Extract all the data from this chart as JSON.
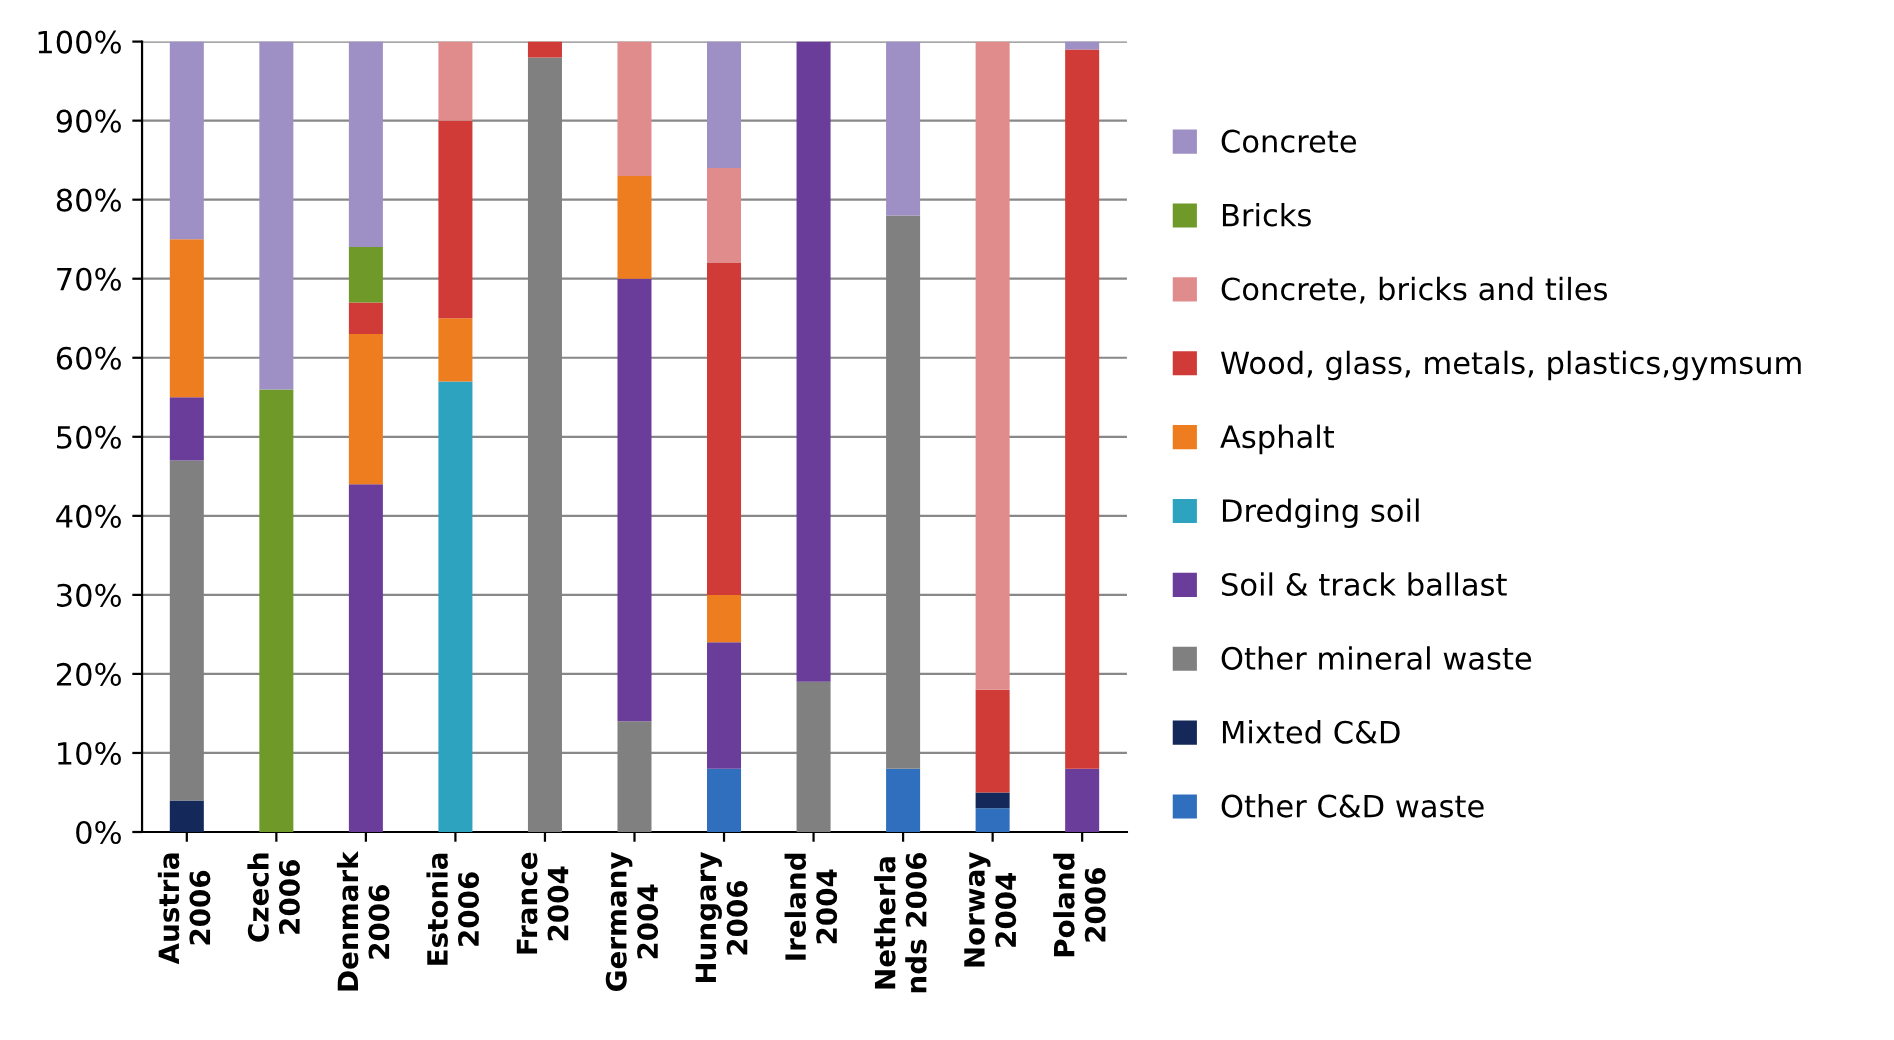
{
  "chart_data": {
    "type": "bar",
    "stacked": true,
    "categories": [
      "Austria\n2006",
      "Czech\n2006",
      "Denmark\n2006",
      "Estonia\n2006",
      "France\n2004",
      "Germany\n2004",
      "Hungary\n2006",
      "Ireland\n2004",
      "Netherla\nnds 2006",
      "Norway\n2004",
      "Poland\n2006"
    ],
    "series": [
      {
        "name": "Other C&D waste",
        "color": "#2f6fbd",
        "values": [
          null,
          null,
          null,
          null,
          null,
          null,
          8,
          null,
          8,
          3,
          null
        ]
      },
      {
        "name": "Mixted C&D",
        "color": "#14285a",
        "values": [
          4,
          null,
          null,
          null,
          null,
          null,
          null,
          null,
          null,
          2,
          null
        ]
      },
      {
        "name": "Other mineral waste",
        "color": "#808080",
        "values": [
          43,
          null,
          null,
          null,
          98,
          14,
          null,
          19,
          70,
          null,
          null
        ]
      },
      {
        "name": "Soil & track ballast",
        "color": "#6a3d9a",
        "values": [
          8,
          null,
          44,
          null,
          null,
          56,
          16,
          81,
          null,
          null,
          8
        ]
      },
      {
        "name": "Dredging soil",
        "color": "#2ea3c0",
        "values": [
          null,
          null,
          null,
          57,
          null,
          null,
          null,
          null,
          null,
          null,
          null
        ]
      },
      {
        "name": "Asphalt",
        "color": "#ed7d1f",
        "values": [
          20,
          null,
          19,
          8,
          null,
          13,
          6,
          null,
          null,
          null,
          null
        ]
      },
      {
        "name": "Wood, glass, metals, plastics,gymsum",
        "color": "#d03a37",
        "values": [
          null,
          null,
          4,
          25,
          2,
          null,
          42,
          null,
          null,
          13,
          91
        ]
      },
      {
        "name": "Concrete, bricks and tiles",
        "color": "#e08c8c",
        "values": [
          null,
          null,
          null,
          10,
          null,
          17,
          12,
          null,
          null,
          82,
          null
        ]
      },
      {
        "name": "Bricks",
        "color": "#6f9a2a",
        "values": [
          null,
          56,
          7,
          null,
          null,
          null,
          null,
          null,
          null,
          null,
          null
        ]
      },
      {
        "name": "Concrete",
        "color": "#9e8fc4",
        "values": [
          25,
          44,
          26,
          null,
          null,
          null,
          16,
          null,
          22,
          null,
          1
        ]
      }
    ],
    "ylim": [
      0,
      100
    ],
    "yticks": [
      {
        "value": 0,
        "label": "0%"
      },
      {
        "value": 10,
        "label": "10%"
      },
      {
        "value": 20,
        "label": "20%"
      },
      {
        "value": 30,
        "label": "30%"
      },
      {
        "value": 40,
        "label": "40%"
      },
      {
        "value": 50,
        "label": "50%"
      },
      {
        "value": 60,
        "label": "60%"
      },
      {
        "value": 70,
        "label": "70%"
      },
      {
        "value": 80,
        "label": "80%"
      },
      {
        "value": 90,
        "label": "90%"
      },
      {
        "value": 100,
        "label": "100%"
      }
    ],
    "grid": "y",
    "legend": "right"
  }
}
